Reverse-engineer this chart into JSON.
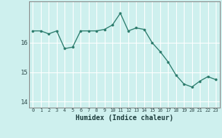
{
  "x": [
    0,
    1,
    2,
    3,
    4,
    5,
    6,
    7,
    8,
    9,
    10,
    11,
    12,
    13,
    14,
    15,
    16,
    17,
    18,
    19,
    20,
    21,
    22,
    23
  ],
  "y": [
    16.4,
    16.4,
    16.3,
    16.4,
    15.8,
    15.85,
    16.4,
    16.4,
    16.4,
    16.45,
    16.6,
    17.0,
    16.4,
    16.5,
    16.45,
    16.0,
    15.7,
    15.35,
    14.9,
    14.6,
    14.5,
    14.7,
    14.85,
    14.75
  ],
  "xlabel": "Humidex (Indice chaleur)",
  "ylim": [
    13.8,
    17.4
  ],
  "xlim": [
    -0.5,
    23.5
  ],
  "yticks": [
    14,
    15,
    16
  ],
  "xticks": [
    0,
    1,
    2,
    3,
    4,
    5,
    6,
    7,
    8,
    9,
    10,
    11,
    12,
    13,
    14,
    15,
    16,
    17,
    18,
    19,
    20,
    21,
    22,
    23
  ],
  "bg_color": "#cef0ee",
  "line_color": "#2e7d6e",
  "grid_color": "#ffffff",
  "spine_color": "#888888"
}
